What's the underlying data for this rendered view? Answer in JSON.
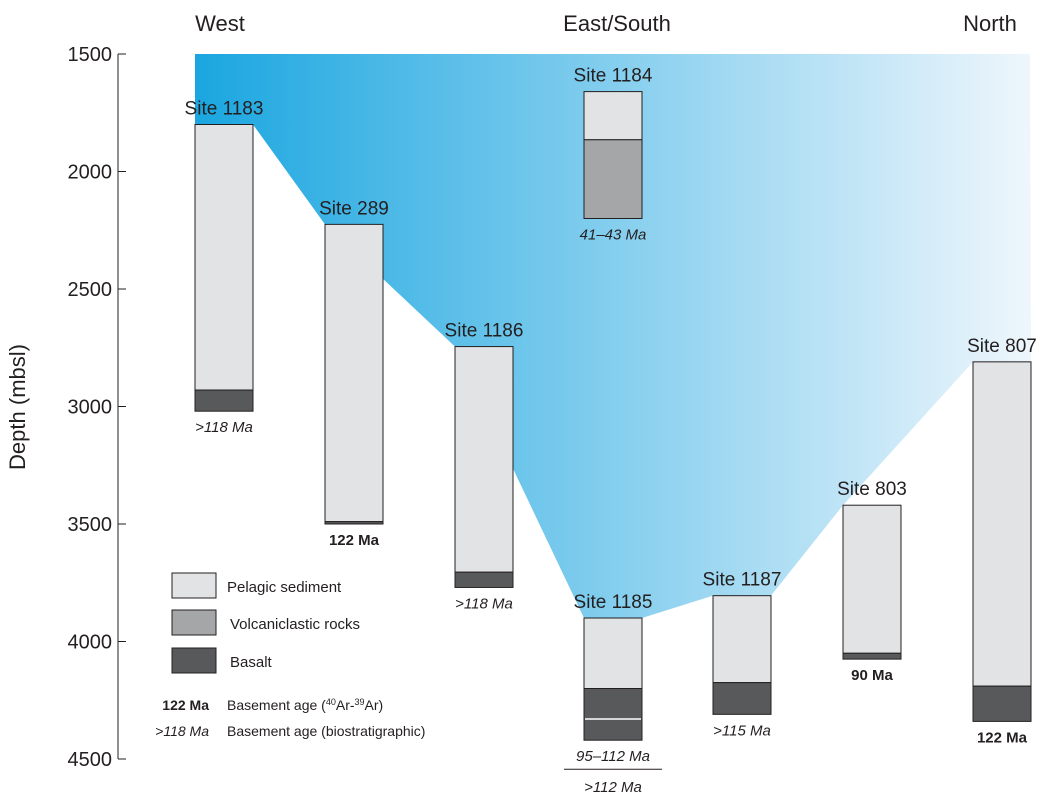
{
  "chart_data": {
    "type": "bar",
    "ylabel": "Depth (mbsl)",
    "yticks": [
      "1500",
      "2000",
      "2500",
      "3000",
      "3500",
      "4000",
      "4500"
    ],
    "ylim": [
      1500,
      4500
    ],
    "y_inverted": true,
    "regions": [
      "West",
      "East/South",
      "North"
    ],
    "colors": {
      "pelagic": "#e2e3e5",
      "volcaniclastic": "#a5a6a8",
      "basalt": "#58595b",
      "gradient_dark": "#1aa6e0",
      "gradient_light": "#eef6fc"
    },
    "sites": [
      {
        "name": "Site 1183",
        "region": "West",
        "top": 1800,
        "units": [
          {
            "type": "pelagic",
            "from": 1800,
            "to": 2930
          },
          {
            "type": "basalt",
            "from": 2930,
            "to": 3020
          }
        ],
        "age": [
          {
            "text": ">118 Ma",
            "style": "biostratigraphic"
          }
        ]
      },
      {
        "name": "Site 289",
        "region": "West",
        "top": 2225,
        "units": [
          {
            "type": "pelagic",
            "from": 2225,
            "to": 3490
          },
          {
            "type": "basalt",
            "from": 3490,
            "to": 3500
          }
        ],
        "age": [
          {
            "text": "122 Ma",
            "style": "radiometric"
          }
        ]
      },
      {
        "name": "Site 1186",
        "region": "West",
        "top": 2745,
        "units": [
          {
            "type": "pelagic",
            "from": 2745,
            "to": 3705
          },
          {
            "type": "basalt",
            "from": 3705,
            "to": 3770
          }
        ],
        "age": [
          {
            "text": ">118 Ma",
            "style": "biostratigraphic"
          }
        ]
      },
      {
        "name": "Site 1184",
        "region": "East/South",
        "top": 1660,
        "units": [
          {
            "type": "pelagic",
            "from": 1660,
            "to": 1865
          },
          {
            "type": "volcaniclastic",
            "from": 1865,
            "to": 2200
          }
        ],
        "age": [
          {
            "text": "41–43 Ma",
            "style": "biostratigraphic"
          }
        ]
      },
      {
        "name": "Site 1185",
        "region": "East/South",
        "top": 3900,
        "units": [
          {
            "type": "pelagic",
            "from": 3900,
            "to": 4200
          },
          {
            "type": "basalt",
            "from": 4200,
            "to": 4420
          }
        ],
        "age": [
          {
            "text": "95–112 Ma",
            "style": "biostratigraphic"
          },
          {
            "text": ">112 Ma",
            "style": "biostratigraphic"
          }
        ]
      },
      {
        "name": "Site 1187",
        "region": "East/South",
        "top": 3805,
        "units": [
          {
            "type": "pelagic",
            "from": 3805,
            "to": 4175
          },
          {
            "type": "basalt",
            "from": 4175,
            "to": 4310
          }
        ],
        "age": [
          {
            "text": ">115 Ma",
            "style": "biostratigraphic"
          }
        ]
      },
      {
        "name": "Site 803",
        "region": "North",
        "top": 3420,
        "units": [
          {
            "type": "pelagic",
            "from": 3420,
            "to": 4050
          },
          {
            "type": "basalt",
            "from": 4050,
            "to": 4075
          }
        ],
        "age": [
          {
            "text": "90 Ma",
            "style": "radiometric"
          }
        ]
      },
      {
        "name": "Site 807",
        "region": "North",
        "top": 2810,
        "units": [
          {
            "type": "pelagic",
            "from": 2810,
            "to": 4190
          },
          {
            "type": "basalt",
            "from": 4190,
            "to": 4340
          }
        ],
        "age": [
          {
            "text": "122 Ma",
            "style": "radiometric"
          }
        ]
      }
    ],
    "legend": [
      {
        "key": "pelagic",
        "label": "Pelagic sediment"
      },
      {
        "key": "volcaniclastic",
        "label": "Volcaniclastic rocks"
      },
      {
        "key": "basalt",
        "label": "Basalt"
      }
    ],
    "age_legend": [
      {
        "sample": "122 Ma",
        "desc_pre": "Basement age (",
        "sup1": "40",
        "mid": "Ar-",
        "sup2": "39",
        "desc_post": "Ar)",
        "style": "radiometric"
      },
      {
        "sample": ">118 Ma",
        "desc_pre": "Basement age (biostratigraphic)",
        "sup1": "",
        "mid": "",
        "sup2": "",
        "desc_post": "",
        "style": "biostratigraphic"
      }
    ]
  }
}
